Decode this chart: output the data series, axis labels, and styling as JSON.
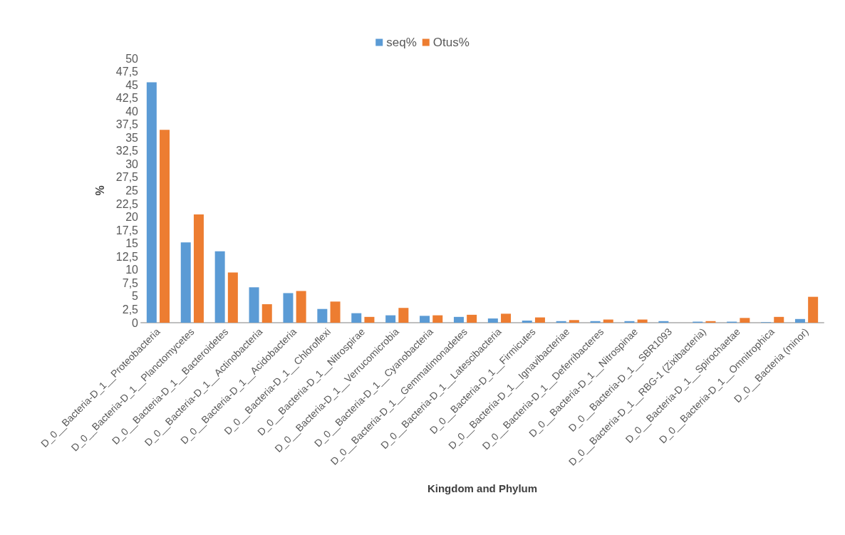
{
  "chart_data": {
    "type": "bar",
    "xlabel": "Kingdom and Phylum",
    "ylabel": "%",
    "categories": [
      "D_0__Bacteria-D_1__Proteobacteria",
      "D_0__Bacteria-D_1__Planctomycetes",
      "D_0__Bacteria-D_1__Bacteroidetes",
      "D_0__Bacteria-D_1__Actinobacteria",
      "D_0__Bacteria-D_1__Acidobacteria",
      "D_0__Bacteria-D_1__Chloroflexi",
      "D_0__Bacteria-D_1__Nitrospirae",
      "D_0__Bacteria-D_1__Verrucomicrobia",
      "D_0__Bacteria-D_1__Cyanobacteria",
      "D_0__Bacteria-D_1__Gemmatimonadetes",
      "D_0__Bacteria-D_1__Latescibacteria",
      "D_0__Bacteria-D_1__Firmicutes",
      "D_0__Bacteria-D_1__Ignavibacteriae",
      "D_0__Bacteria-D_1__Deferribacteres",
      "D_0__Bacteria-D_1__Nitrospinae",
      "D_0__Bacteria-D_1__SBR1093",
      "D_0__Bacteria-D_1__RBG-1 (Zixibacteria)",
      "D_0__Bacteria-D_1__Spirochaetae",
      "D_0__Bacteria-D_1__Omnitrophica",
      "D_0__Bacteria (minor)"
    ],
    "series": [
      {
        "name": "seq%",
        "color": "#5b9bd5",
        "values": [
          45.5,
          15.2,
          13.5,
          6.7,
          5.6,
          2.6,
          1.8,
          1.4,
          1.3,
          1.1,
          0.8,
          0.4,
          0.3,
          0.3,
          0.3,
          0.3,
          0.2,
          0.2,
          0.1,
          0.7
        ]
      },
      {
        "name": "Otus%",
        "color": "#ed7d31",
        "values": [
          36.5,
          20.5,
          9.5,
          3.5,
          6.0,
          4.0,
          1.1,
          2.8,
          1.4,
          1.5,
          1.7,
          1.0,
          0.5,
          0.6,
          0.6,
          0,
          0.3,
          0.9,
          1.1,
          4.9
        ]
      }
    ],
    "ylim": [
      0,
      50
    ],
    "yticks": [
      0,
      {
        "value": 2.5,
        "label": "2,5"
      },
      5,
      {
        "value": 7.5,
        "label": "7,5"
      },
      10,
      {
        "value": 12.5,
        "label": "12,5"
      },
      15,
      {
        "value": 17.5,
        "label": "17,5"
      },
      20,
      {
        "value": 22.5,
        "label": "22,5"
      },
      25,
      {
        "value": 27.5,
        "label": "27,5"
      },
      30,
      {
        "value": 32.5,
        "label": "32,5"
      },
      35,
      {
        "value": 37.5,
        "label": "37,5"
      },
      40,
      {
        "value": 42.5,
        "label": "42,5"
      },
      45,
      {
        "value": 47.5,
        "label": "47,5"
      },
      50
    ],
    "grid": false,
    "legend": "top"
  }
}
